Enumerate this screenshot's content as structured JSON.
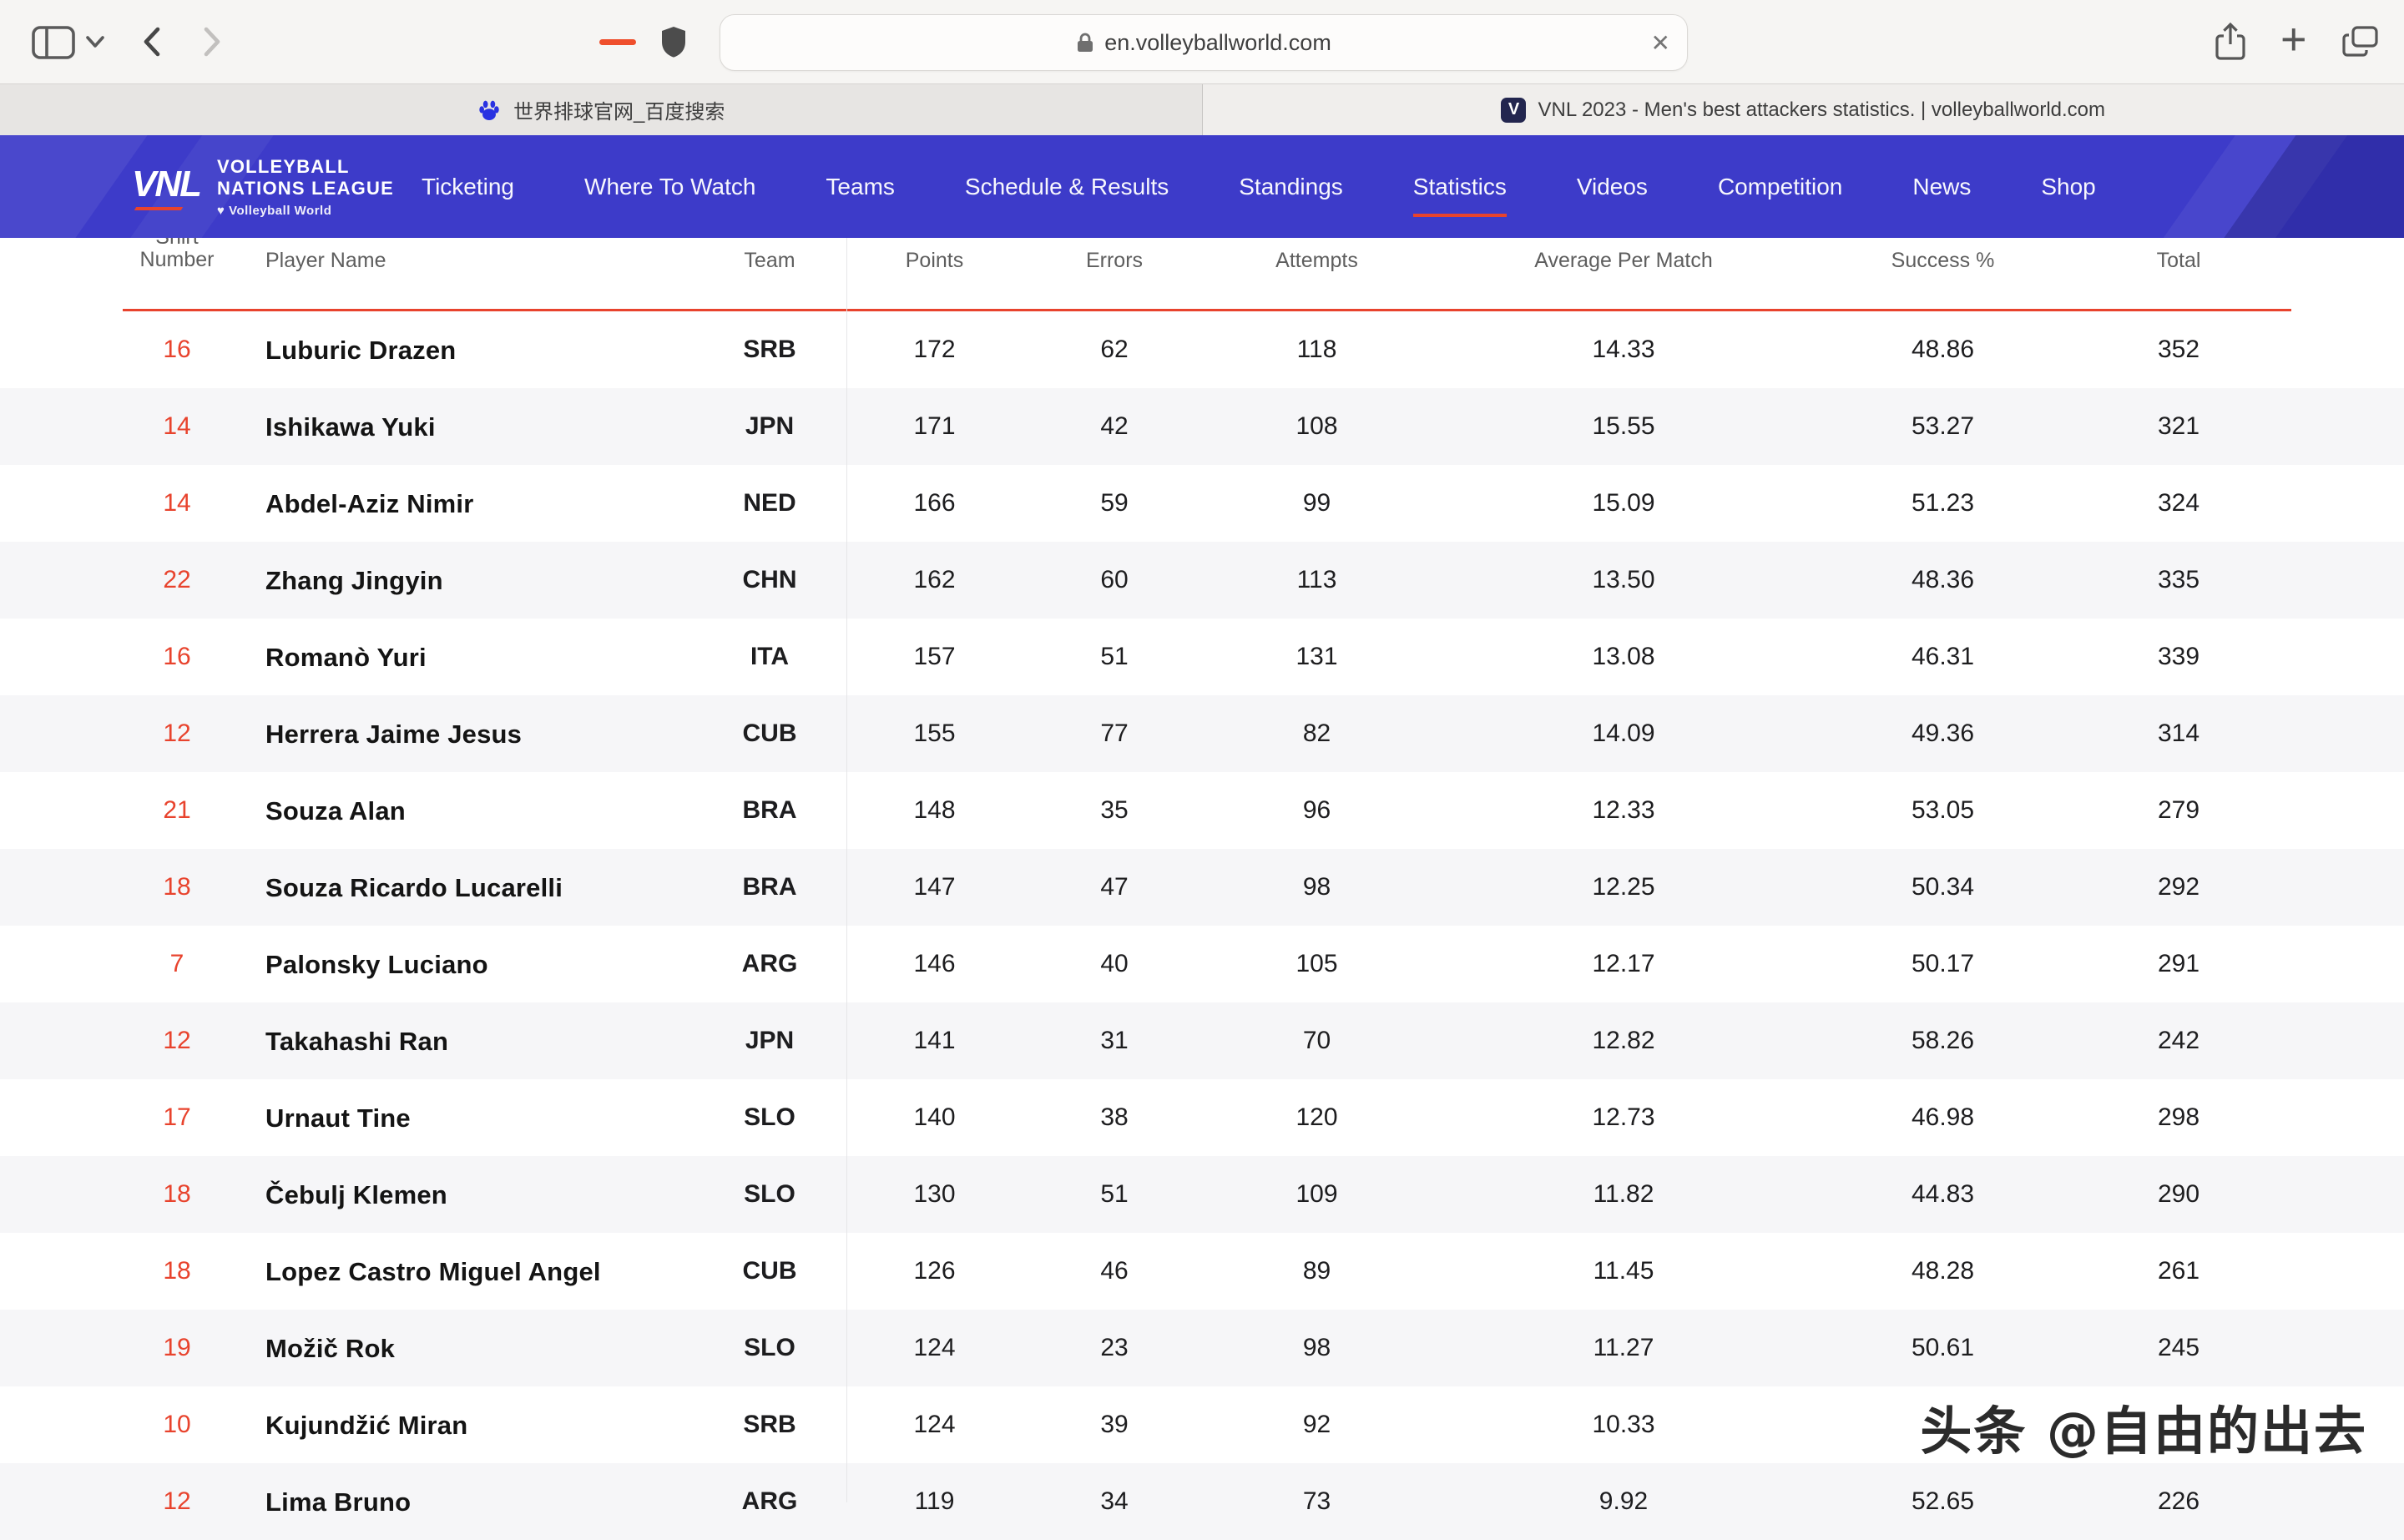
{
  "browser": {
    "address": "en.volleyballworld.com",
    "close_glyph": "✕",
    "plus_glyph": "+",
    "tabs": [
      {
        "title": "世界排球官网_百度搜索"
      },
      {
        "title": "VNL 2023 - Men's best attackers statistics. | volleyballworld.com",
        "badge": "V"
      }
    ]
  },
  "site": {
    "logo": {
      "mark": "VNL",
      "line1": "VOLLEYBALL",
      "line2": "NATIONS LEAGUE",
      "sub": "♥ Volleyball World"
    },
    "nav": [
      "Ticketing",
      "Where To Watch",
      "Teams",
      "Schedule & Results",
      "Standings",
      "Statistics",
      "Videos",
      "Competition",
      "News",
      "Shop"
    ],
    "active_nav": "Statistics",
    "colors": {
      "header_blue": "#3d3bc9",
      "accent_red": "#e8432d"
    }
  },
  "table": {
    "columns": [
      "Shirt Number",
      "Player Name",
      "Team",
      "Points",
      "Errors",
      "Attempts",
      "Average Per Match",
      "Success %",
      "Total"
    ],
    "shirt_label_lines": [
      "Shirt",
      "Number"
    ],
    "row_keys": [
      "shirt",
      "name",
      "team",
      "points",
      "errors",
      "attempts",
      "avg",
      "success",
      "total"
    ],
    "rows": [
      {
        "shirt": "16",
        "name": "Luburic Drazen",
        "team": "SRB",
        "points": "172",
        "errors": "62",
        "attempts": "118",
        "avg": "14.33",
        "success": "48.86",
        "total": "352"
      },
      {
        "shirt": "14",
        "name": "Ishikawa Yuki",
        "team": "JPN",
        "points": "171",
        "errors": "42",
        "attempts": "108",
        "avg": "15.55",
        "success": "53.27",
        "total": "321"
      },
      {
        "shirt": "14",
        "name": "Abdel-Aziz Nimir",
        "team": "NED",
        "points": "166",
        "errors": "59",
        "attempts": "99",
        "avg": "15.09",
        "success": "51.23",
        "total": "324"
      },
      {
        "shirt": "22",
        "name": "Zhang Jingyin",
        "team": "CHN",
        "points": "162",
        "errors": "60",
        "attempts": "113",
        "avg": "13.50",
        "success": "48.36",
        "total": "335"
      },
      {
        "shirt": "16",
        "name": "Romanò Yuri",
        "team": "ITA",
        "points": "157",
        "errors": "51",
        "attempts": "131",
        "avg": "13.08",
        "success": "46.31",
        "total": "339"
      },
      {
        "shirt": "12",
        "name": "Herrera Jaime Jesus",
        "team": "CUB",
        "points": "155",
        "errors": "77",
        "attempts": "82",
        "avg": "14.09",
        "success": "49.36",
        "total": "314"
      },
      {
        "shirt": "21",
        "name": "Souza Alan",
        "team": "BRA",
        "points": "148",
        "errors": "35",
        "attempts": "96",
        "avg": "12.33",
        "success": "53.05",
        "total": "279"
      },
      {
        "shirt": "18",
        "name": "Souza Ricardo Lucarelli",
        "team": "BRA",
        "points": "147",
        "errors": "47",
        "attempts": "98",
        "avg": "12.25",
        "success": "50.34",
        "total": "292"
      },
      {
        "shirt": "7",
        "name": "Palonsky Luciano",
        "team": "ARG",
        "points": "146",
        "errors": "40",
        "attempts": "105",
        "avg": "12.17",
        "success": "50.17",
        "total": "291"
      },
      {
        "shirt": "12",
        "name": "Takahashi Ran",
        "team": "JPN",
        "points": "141",
        "errors": "31",
        "attempts": "70",
        "avg": "12.82",
        "success": "58.26",
        "total": "242"
      },
      {
        "shirt": "17",
        "name": "Urnaut Tine",
        "team": "SLO",
        "points": "140",
        "errors": "38",
        "attempts": "120",
        "avg": "12.73",
        "success": "46.98",
        "total": "298"
      },
      {
        "shirt": "18",
        "name": "Čebulj Klemen",
        "team": "SLO",
        "points": "130",
        "errors": "51",
        "attempts": "109",
        "avg": "11.82",
        "success": "44.83",
        "total": "290"
      },
      {
        "shirt": "18",
        "name": "Lopez Castro Miguel Angel",
        "team": "CUB",
        "points": "126",
        "errors": "46",
        "attempts": "89",
        "avg": "11.45",
        "success": "48.28",
        "total": "261"
      },
      {
        "shirt": "19",
        "name": "Možič Rok",
        "team": "SLO",
        "points": "124",
        "errors": "23",
        "attempts": "98",
        "avg": "11.27",
        "success": "50.61",
        "total": "245"
      },
      {
        "shirt": "10",
        "name": "Kujundžić Miran",
        "team": "SRB",
        "points": "124",
        "errors": "39",
        "attempts": "92",
        "avg": "10.33",
        "success": "",
        "total": ""
      },
      {
        "shirt": "12",
        "name": "Lima Bruno",
        "team": "ARG",
        "points": "119",
        "errors": "34",
        "attempts": "73",
        "avg": "9.92",
        "success": "52.65",
        "total": "226"
      }
    ]
  },
  "watermark": {
    "text": "头条 @自由的出去"
  }
}
